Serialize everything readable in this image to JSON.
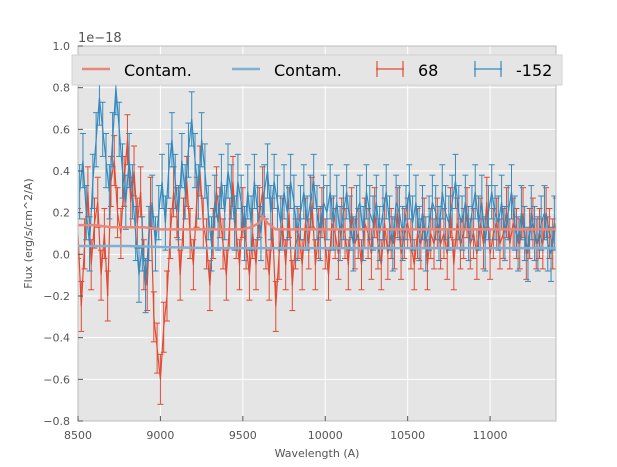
{
  "chart_data": {
    "type": "line",
    "title": "",
    "xlabel": "Wavelength (A)",
    "ylabel": "Flux (erg/s/cm^2/A)",
    "xlim": [
      8500,
      11400
    ],
    "ylim": [
      -0.8,
      1.0
    ],
    "y_offset_label": "1e−18",
    "grid": true,
    "background": "#e5e5e5",
    "grid_color": "#ffffff",
    "legend_position": "top",
    "xticks": [
      8500,
      9000,
      9500,
      10000,
      10500,
      11000
    ],
    "xtick_labels": [
      "8500",
      "9000",
      "9500",
      "10000",
      "10500",
      "11000"
    ],
    "yticks": [
      -0.8,
      -0.6,
      -0.4,
      -0.2,
      0.0,
      0.2,
      0.4,
      0.6,
      0.8,
      1.0
    ],
    "ytick_labels": [
      "−0.8",
      "−0.6",
      "−0.4",
      "−0.2",
      "0.0",
      "0.2",
      "0.4",
      "0.6",
      "0.8",
      "1.0"
    ],
    "colors": {
      "red": "#e24a33",
      "blue": "#348abd",
      "red_light": "#e8877a",
      "blue_light": "#7fb0d3"
    },
    "series": [
      {
        "name": "Contam.",
        "style": "contam",
        "color": "#e8877a",
        "x": [
          8500,
          8600,
          8700,
          8800,
          8900,
          9000,
          9100,
          9200,
          9300,
          9400,
          9500,
          9550,
          9600,
          9620,
          9650,
          9700,
          9800,
          9900,
          10000,
          10100,
          10200,
          10300,
          10400,
          10500,
          10600,
          10700,
          10800,
          10900,
          11000,
          11100,
          11200,
          11300,
          11400
        ],
        "values": [
          0.14,
          0.14,
          0.13,
          0.13,
          0.13,
          0.12,
          0.12,
          0.12,
          0.12,
          0.12,
          0.12,
          0.13,
          0.15,
          0.18,
          0.15,
          0.12,
          0.12,
          0.12,
          0.12,
          0.12,
          0.12,
          0.12,
          0.12,
          0.12,
          0.12,
          0.12,
          0.12,
          0.12,
          0.12,
          0.12,
          0.12,
          0.12,
          0.12
        ]
      },
      {
        "name": "Contam.",
        "style": "contam",
        "color": "#7fb0d3",
        "x": [
          8500,
          8800,
          9000,
          9300,
          9500,
          9600,
          9800,
          10000,
          10300,
          10600,
          10900,
          11200,
          11400
        ],
        "values": [
          0.04,
          0.04,
          0.035,
          0.03,
          0.03,
          0.03,
          0.03,
          0.03,
          0.03,
          0.03,
          0.03,
          0.03,
          0.03
        ]
      },
      {
        "name": "68",
        "style": "errorbar",
        "color": "#e24a33",
        "x_start": 8500,
        "x_step": 20,
        "values": [
          0.1,
          -0.25,
          0.05,
          0.3,
          -0.05,
          0.15,
          0.25,
          -0.1,
          0.1,
          -0.2,
          0.35,
          0.45,
          0.2,
          0.1,
          0.35,
          0.55,
          0.25,
          0.4,
          0.15,
          0.3,
          -0.05,
          -0.15,
          0.25,
          -0.3,
          -0.45,
          -0.6,
          -0.35,
          -0.2,
          0.1,
          0.3,
          0.2,
          -0.1,
          0.15,
          0.35,
          0.1,
          -0.05,
          0.25,
          0.4,
          0.15,
          0.05,
          -0.15,
          0.1,
          0.3,
          0.2,
          0.05,
          -0.1,
          0.15,
          0.35,
          0.1,
          -0.05,
          0.2,
          0.05,
          -0.1,
          0.1,
          -0.05,
          0.2,
          0.3,
          0.05,
          -0.1,
          0.15,
          -0.25,
          0.0,
          0.15,
          -0.05,
          0.2,
          -0.15,
          0.05,
          0.1,
          -0.05,
          0.15,
          0.05,
          0.25,
          -0.05,
          0.1,
          0.2,
          0.05,
          -0.1,
          0.15,
          0.1,
          0.0,
          0.15,
          0.1,
          -0.05,
          0.2,
          0.05,
          0.1,
          -0.05,
          0.15,
          0.1,
          0.0,
          0.2,
          0.05,
          -0.05,
          0.15,
          0.0,
          0.1,
          0.05,
          0.2,
          0.0,
          0.1,
          0.15,
          0.05,
          -0.05,
          0.1,
          0.05,
          0.15,
          -0.05,
          0.1,
          0.05,
          0.15,
          0.05,
          0.1,
          0.0,
          0.2,
          -0.05,
          0.15,
          0.05,
          0.1,
          0.2,
          0.05,
          0.1,
          0.0,
          0.15,
          0.05,
          0.25,
          0.0,
          0.1,
          0.15,
          0.05,
          0.1,
          0.2,
          0.05,
          0.15,
          0.1,
          0.05,
          0.2,
          0.0,
          0.1,
          0.15,
          0.05,
          0.1,
          0.05,
          0.2,
          0.1,
          0.05,
          0.15
        ],
        "errors": 0.12
      },
      {
        "name": "-152",
        "style": "errorbar",
        "color": "#348abd",
        "x_start": 8510,
        "x_step": 20,
        "values": [
          0.3,
          0.45,
          0.2,
          0.05,
          0.35,
          0.55,
          0.75,
          0.6,
          0.45,
          0.3,
          0.55,
          0.8,
          0.6,
          0.4,
          0.25,
          0.45,
          0.3,
          0.1,
          -0.1,
          0.05,
          -0.15,
          0.1,
          0.25,
          0.05,
          0.2,
          0.35,
          0.15,
          0.4,
          0.55,
          0.35,
          0.2,
          0.45,
          0.3,
          0.5,
          0.65,
          0.45,
          0.3,
          0.55,
          0.4,
          0.2,
          0.05,
          0.25,
          0.15,
          0.35,
          0.2,
          0.4,
          0.3,
          0.15,
          0.35,
          0.25,
          0.1,
          0.3,
          0.15,
          0.35,
          0.2,
          0.1,
          0.3,
          0.4,
          0.2,
          0.35,
          0.25,
          0.15,
          0.3,
          0.2,
          0.35,
          0.25,
          0.1,
          0.2,
          0.3,
          0.15,
          0.25,
          0.35,
          0.2,
          0.1,
          0.25,
          0.2,
          0.3,
          0.15,
          0.25,
          0.1,
          0.2,
          0.3,
          0.15,
          0.05,
          0.2,
          0.25,
          0.1,
          0.3,
          0.2,
          0.15,
          0.25,
          0.1,
          0.2,
          0.3,
          0.15,
          0.05,
          0.25,
          0.2,
          0.1,
          0.2,
          0.3,
          0.15,
          0.25,
          0.1,
          0.2,
          0.05,
          0.15,
          0.25,
          0.2,
          0.1,
          0.3,
          0.2,
          0.15,
          0.25,
          0.35,
          0.2,
          0.15,
          0.25,
          0.1,
          0.2,
          0.3,
          0.15,
          0.25,
          0.05,
          0.2,
          0.3,
          0.2,
          0.15,
          0.25,
          0.1,
          0.2,
          0.3,
          0.15,
          0.05,
          0.2,
          0.1,
          0.0,
          0.2,
          0.1,
          0.05,
          0.15,
          0.2,
          0.05,
          0.0,
          0.15
        ],
        "errors": 0.13
      }
    ]
  }
}
